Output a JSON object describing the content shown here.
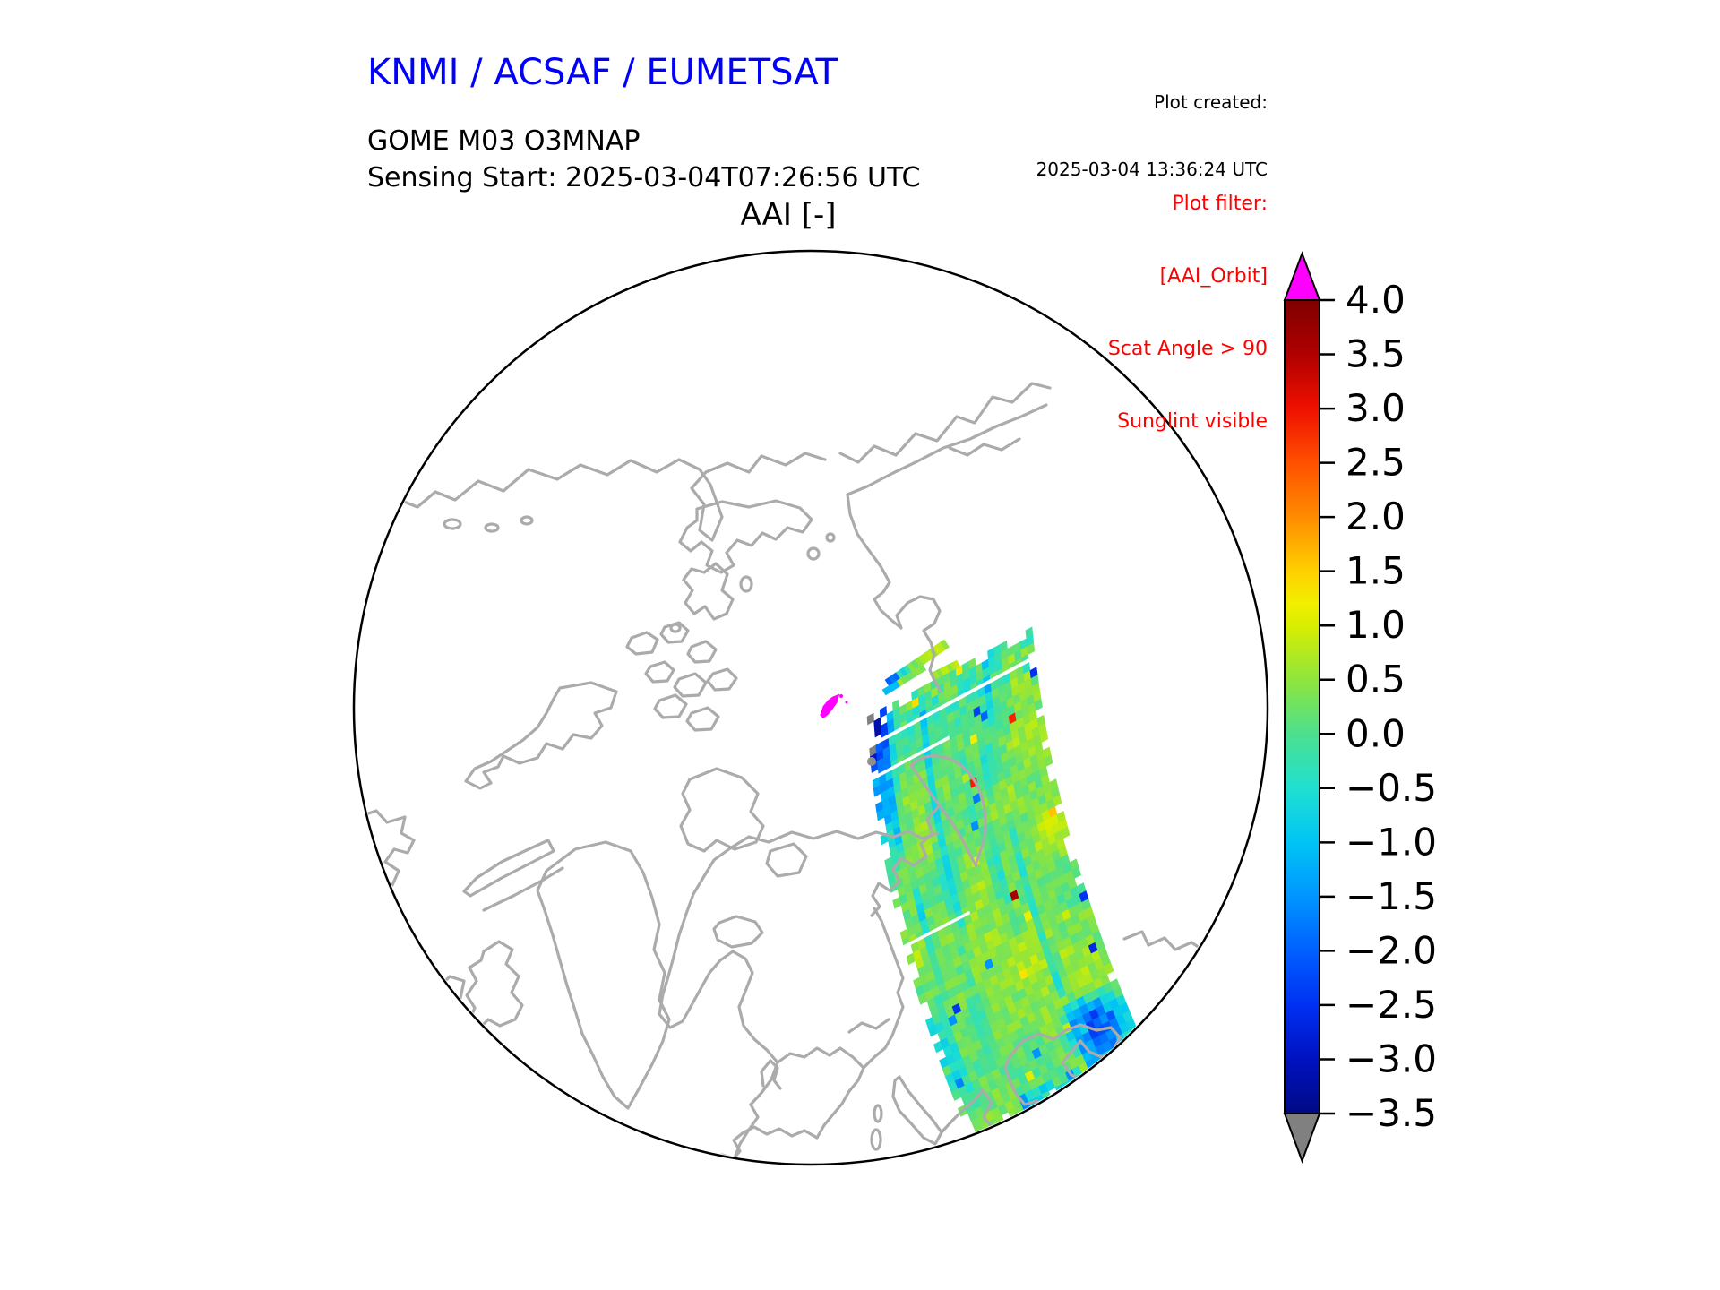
{
  "header": {
    "agency": "KNMI / ACSAF / EUMETSAT",
    "product": "GOME M03 O3MNAP",
    "sensing_start": "Sensing Start: 2025-03-04T07:26:56 UTC",
    "created_label": "Plot created:",
    "created_value": "2025-03-04 13:36:24 UTC",
    "filter_lines": [
      "Plot filter:",
      "[AAI_Orbit]",
      "Scat Angle > 90",
      "Sunglint visible"
    ]
  },
  "map_title": "AAI [-]",
  "colors": {
    "title_blue": "#0000ff",
    "filter_red": "#ff0000",
    "coast_gray": "#ababab",
    "island_gray": "#909090",
    "outline_black": "#000000",
    "background": "#ffffff"
  },
  "chart_data": {
    "type": "heatmap",
    "title": "AAI [-]",
    "projection": "north polar stereographic, Arctic view with gray coastlines",
    "colorbar": {
      "range": [
        -3.5,
        4.0
      ],
      "tick_values": [
        4.0,
        3.5,
        3.0,
        2.5,
        2.0,
        1.5,
        1.0,
        0.5,
        0.0,
        -0.5,
        -1.0,
        -1.5,
        -2.0,
        -2.5,
        -3.0,
        -3.5
      ],
      "tick_labels": [
        "4.0",
        "3.5",
        "3.0",
        "2.5",
        "2.0",
        "1.5",
        "1.0",
        "0.5",
        "0.0",
        "−0.5",
        "−1.0",
        "−1.5",
        "−2.0",
        "−2.5",
        "−3.0",
        "−3.5"
      ],
      "over_color": "#ff00ff",
      "under_color": "#808080",
      "stops": [
        [
          4.0,
          "#7f0000"
        ],
        [
          3.5,
          "#b00000"
        ],
        [
          3.0,
          "#ef1000"
        ],
        [
          2.5,
          "#ff5000"
        ],
        [
          2.0,
          "#ff8c00"
        ],
        [
          1.5,
          "#ffd000"
        ],
        [
          1.2,
          "#f2ef00"
        ],
        [
          1.0,
          "#d8ee00"
        ],
        [
          0.5,
          "#8fe53c"
        ],
        [
          0.0,
          "#4ce08e"
        ],
        [
          -0.5,
          "#20e0d0"
        ],
        [
          -1.0,
          "#00c4f5"
        ],
        [
          -1.5,
          "#0095ff"
        ],
        [
          -2.0,
          "#0060ff"
        ],
        [
          -2.5,
          "#0030f2"
        ],
        [
          -3.0,
          "#0012c0"
        ],
        [
          -3.5,
          "#000a85"
        ]
      ]
    },
    "swath": {
      "description": "Single GOME-2 orbit swath crossing the Arctic from the Kara Sea over Novaya Zemlya, the White Sea and eastern Europe down to the Black Sea; mottled aerosol-index field",
      "typical_value_range": [
        -0.6,
        1.3
      ],
      "features": [
        {
          "name": "sunglint-pixels",
          "value": "> 4.0 (over-range)",
          "color": "#ff00ff",
          "note": "small magenta blob near map centre"
        },
        {
          "name": "northwest-edge-negative-cluster",
          "value": "-2.0 to -3.5",
          "note": "dark blue speckle along upper-left swath edge"
        },
        {
          "name": "black-sea-negative-patch",
          "value": "-1.0 to -2.5",
          "note": "blue patch over Black Sea at lower right"
        },
        {
          "name": "hot-specks",
          "value": "2.0 to 3.5",
          "note": "isolated orange/red pixels"
        },
        {
          "name": "detached-scan-stripes",
          "value": "-2.0 to 1.0",
          "note": "two thin diagonal scan fragments above main swath"
        }
      ]
    }
  }
}
